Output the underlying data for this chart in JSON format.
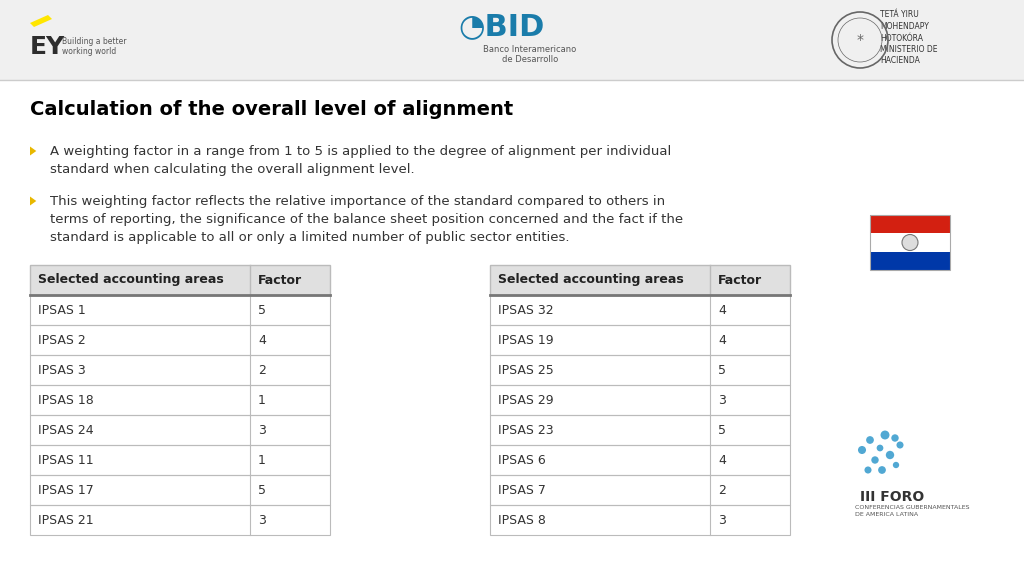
{
  "title": "Calculation of the overall level of alignment",
  "bullet1_line1": "A weighting factor in a range from 1 to 5 is applied to the degree of alignment per individual",
  "bullet1_line2": "standard when calculating the overall alignment level.",
  "bullet2_line1": "This weighting factor reflects the relative importance of the standard compared to others in",
  "bullet2_line2": "terms of reporting, the significance of the balance sheet position concerned and the fact if the",
  "bullet2_line3": "standard is applicable to all or only a limited number of public sector entities.",
  "table1_header": [
    "Selected accounting areas",
    "Factor"
  ],
  "table1_rows": [
    [
      "IPSAS 1",
      "5"
    ],
    [
      "IPSAS 2",
      "4"
    ],
    [
      "IPSAS 3",
      "2"
    ],
    [
      "IPSAS 18",
      "1"
    ],
    [
      "IPSAS 24",
      "3"
    ],
    [
      "IPSAS 11",
      "1"
    ],
    [
      "IPSAS 17",
      "5"
    ],
    [
      "IPSAS 21",
      "3"
    ]
  ],
  "table2_header": [
    "Selected accounting areas",
    "Factor"
  ],
  "table2_rows": [
    [
      "IPSAS 32",
      "4"
    ],
    [
      "IPSAS 19",
      "4"
    ],
    [
      "IPSAS 25",
      "5"
    ],
    [
      "IPSAS 29",
      "3"
    ],
    [
      "IPSAS 23",
      "5"
    ],
    [
      "IPSAS 6",
      "4"
    ],
    [
      "IPSAS 7",
      "2"
    ],
    [
      "IPSAS 8",
      "3"
    ]
  ],
  "bg_color": "#ffffff",
  "header_bg": "#e0e0e0",
  "header_text_color": "#222222",
  "cell_text_color": "#333333",
  "border_color": "#bbbbbb",
  "title_color": "#000000",
  "bullet_color": "#e8b800",
  "text_color": "#333333",
  "header_border_color": "#777777",
  "top_bar_color": "#f0f0f0",
  "flag_red": "#d32011",
  "flag_white": "#ffffff",
  "flag_blue": "#0038a8",
  "ey_yellow": "#ffe600",
  "bid_blue": "#1a7caa",
  "logo_bar_line": "#cccccc"
}
